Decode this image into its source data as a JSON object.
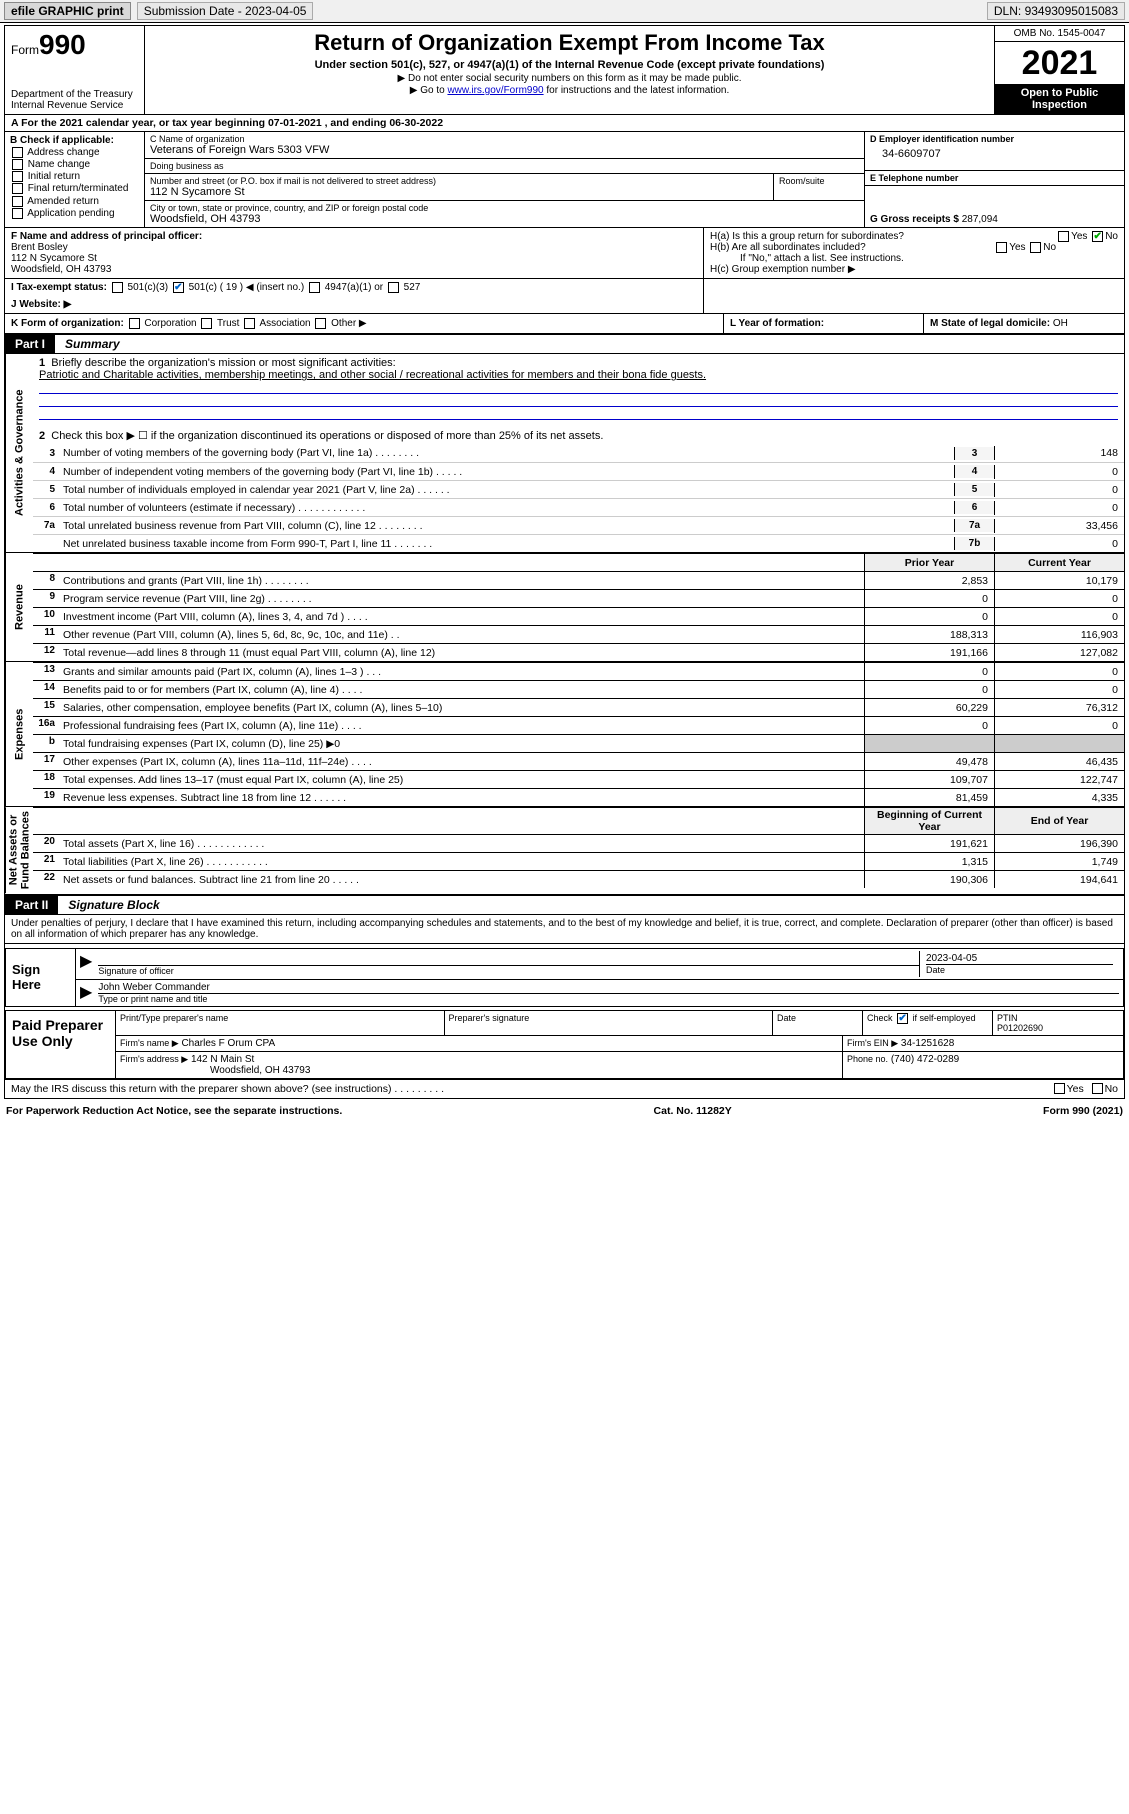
{
  "topbar": {
    "efile": "efile GRAPHIC print",
    "submission_label": "Submission Date - 2023-04-05",
    "dln_label": "DLN: 93493095015083"
  },
  "header": {
    "form_small": "Form",
    "form_no": "990",
    "dept": "Department of the Treasury",
    "irs": "Internal Revenue Service",
    "title": "Return of Organization Exempt From Income Tax",
    "sub1": "Under section 501(c), 527, or 4947(a)(1) of the Internal Revenue Code (except private foundations)",
    "sub2": "▶ Do not enter social security numbers on this form as it may be made public.",
    "sub3_pre": "▶ Go to ",
    "sub3_link": "www.irs.gov/Form990",
    "sub3_post": " for instructions and the latest information.",
    "omb": "OMB No. 1545-0047",
    "year": "2021",
    "open1": "Open to Public",
    "open2": "Inspection"
  },
  "row_a": {
    "text": "A For the 2021 calendar year, or tax year beginning 07-01-2021    , and ending 06-30-2022"
  },
  "b": {
    "title": "B Check if applicable:",
    "opts": [
      "Address change",
      "Name change",
      "Initial return",
      "Final return/terminated",
      "Amended return",
      "Application pending"
    ]
  },
  "c": {
    "name_lbl": "C Name of organization",
    "name": "Veterans of Foreign Wars 5303 VFW",
    "dba_lbl": "Doing business as",
    "dba": "",
    "addr_lbl": "Number and street (or P.O. box if mail is not delivered to street address)",
    "room_lbl": "Room/suite",
    "addr": "112 N Sycamore St",
    "city_lbl": "City or town, state or province, country, and ZIP or foreign postal code",
    "city": "Woodsfield, OH  43793"
  },
  "d": {
    "lbl": "D Employer identification number",
    "val": "34-6609707"
  },
  "e": {
    "lbl": "E Telephone number",
    "val": ""
  },
  "g": {
    "lbl": "G Gross receipts $",
    "val": "287,094"
  },
  "f": {
    "lbl": "F  Name and address of principal officer:",
    "name": "Brent Bosley",
    "addr1": "112 N Sycamore St",
    "addr2": "Woodsfield, OH  43793"
  },
  "h": {
    "a": "H(a)  Is this a group return for subordinates?",
    "b": "H(b)  Are all subordinates included?",
    "note": "If \"No,\" attach a list. See instructions.",
    "c": "H(c)  Group exemption number ▶",
    "yes": "Yes",
    "no": "No"
  },
  "i": {
    "lbl": "I   Tax-exempt status:",
    "c3": "501(c)(3)",
    "c": "501(c) ( 19 ) ◀ (insert no.)",
    "a1": "4947(a)(1) or",
    "s527": "527"
  },
  "j": {
    "lbl": "J   Website: ▶",
    "val": ""
  },
  "k": {
    "lbl": "K Form of organization:",
    "corp": "Corporation",
    "trust": "Trust",
    "assoc": "Association",
    "other": "Other ▶"
  },
  "l": {
    "lbl": "L Year of formation:",
    "val": ""
  },
  "m": {
    "lbl": "M State of legal domicile:",
    "val": "OH"
  },
  "part1": {
    "no": "Part I",
    "title": "Summary"
  },
  "vlabels": {
    "gov": "Activities & Governance",
    "rev": "Revenue",
    "exp": "Expenses",
    "net": "Net Assets or\nFund Balances"
  },
  "sec1": {
    "l1": "Briefly describe the organization's mission or most significant activities:",
    "l1v": "Patriotic and Charitable activities, membership meetings, and other social / recreational activities for members and their bona fide guests.",
    "l2": "Check this box ▶ ☐  if the organization discontinued its operations or disposed of more than 25% of its net assets.",
    "rows": [
      {
        "n": "3",
        "d": "Number of voting members of the governing body (Part VI, line 1a)   .     .     .     .     .     .     .     .",
        "box": "3",
        "v": "148"
      },
      {
        "n": "4",
        "d": "Number of independent voting members of the governing body (Part VI, line 1b)   .     .     .     .     .",
        "box": "4",
        "v": "0"
      },
      {
        "n": "5",
        "d": "Total number of individuals employed in calendar year 2021 (Part V, line 2a)   .     .     .     .     .     .",
        "box": "5",
        "v": "0"
      },
      {
        "n": "6",
        "d": "Total number of volunteers (estimate if necessary)   .     .     .     .     .     .     .     .     .     .     .     .",
        "box": "6",
        "v": "0"
      },
      {
        "n": "7a",
        "d": "Total unrelated business revenue from Part VIII, column (C), line 12   .     .     .     .     .     .     .     .",
        "box": "7a",
        "v": "33,456"
      },
      {
        "n": "",
        "d": "Net unrelated business taxable income from Form 990-T, Part I, line 11   .     .     .     .     .     .     .",
        "box": "7b",
        "v": "0"
      }
    ]
  },
  "colhdr": {
    "prior": "Prior Year",
    "current": "Current Year",
    "bcy": "Beginning of Current Year",
    "eoy": "End of Year"
  },
  "rev_rows": [
    {
      "n": "8",
      "d": "Contributions and grants (Part VIII, line 1h)   .     .     .     .     .     .     .     .",
      "p": "2,853",
      "c": "10,179"
    },
    {
      "n": "9",
      "d": "Program service revenue (Part VIII, line 2g)   .     .     .     .     .     .     .     .",
      "p": "0",
      "c": "0"
    },
    {
      "n": "10",
      "d": "Investment income (Part VIII, column (A), lines 3, 4, and 7d )    .     .     .     .",
      "p": "0",
      "c": "0"
    },
    {
      "n": "11",
      "d": "Other revenue (Part VIII, column (A), lines 5, 6d, 8c, 9c, 10c, and 11e)    .     .",
      "p": "188,313",
      "c": "116,903"
    },
    {
      "n": "12",
      "d": "Total revenue—add lines 8 through 11 (must equal Part VIII, column (A), line 12)",
      "p": "191,166",
      "c": "127,082"
    }
  ],
  "exp_rows": [
    {
      "n": "13",
      "d": "Grants and similar amounts paid (Part IX, column (A), lines 1–3 )   .     .     .",
      "p": "0",
      "c": "0"
    },
    {
      "n": "14",
      "d": "Benefits paid to or for members (Part IX, column (A), line 4)   .     .     .     .",
      "p": "0",
      "c": "0"
    },
    {
      "n": "15",
      "d": "Salaries, other compensation, employee benefits (Part IX, column (A), lines 5–10)",
      "p": "60,229",
      "c": "76,312"
    },
    {
      "n": "16a",
      "d": "Professional fundraising fees (Part IX, column (A), line 11e)   .     .     .     .",
      "p": "0",
      "c": "0"
    },
    {
      "n": "b",
      "d": "Total fundraising expenses (Part IX, column (D), line 25) ▶0",
      "p": "",
      "c": "",
      "shade": true
    },
    {
      "n": "17",
      "d": "Other expenses (Part IX, column (A), lines 11a–11d, 11f–24e)   .     .     .     .",
      "p": "49,478",
      "c": "46,435"
    },
    {
      "n": "18",
      "d": "Total expenses. Add lines 13–17 (must equal Part IX, column (A), line 25)",
      "p": "109,707",
      "c": "122,747"
    },
    {
      "n": "19",
      "d": "Revenue less expenses. Subtract line 18 from line 12   .     .     .     .     .     .",
      "p": "81,459",
      "c": "4,335"
    }
  ],
  "net_rows": [
    {
      "n": "20",
      "d": "Total assets (Part X, line 16)   .     .     .     .     .     .     .     .     .     .     .     .",
      "p": "191,621",
      "c": "196,390"
    },
    {
      "n": "21",
      "d": "Total liabilities (Part X, line 26)   .     .     .     .     .     .     .     .     .     .     .",
      "p": "1,315",
      "c": "1,749"
    },
    {
      "n": "22",
      "d": "Net assets or fund balances. Subtract line 21 from line 20   .     .     .     .     .",
      "p": "190,306",
      "c": "194,641"
    }
  ],
  "part2": {
    "no": "Part II",
    "title": "Signature Block"
  },
  "penalties": "Under penalties of perjury, I declare that I have examined this return, including accompanying schedules and statements, and to the best of my knowledge and belief, it is true, correct, and complete. Declaration of preparer (other than officer) is based on all information of which preparer has any knowledge.",
  "sign": {
    "here": "Sign Here",
    "sig_lbl": "Signature of officer",
    "date": "2023-04-05",
    "date_lbl": "Date",
    "name": "John Weber  Commander",
    "name_lbl": "Type or print name and title"
  },
  "prep": {
    "title": "Paid Preparer Use Only",
    "pt_name_lbl": "Print/Type preparer's name",
    "pt_sig_lbl": "Preparer's signature",
    "date_lbl": "Date",
    "check_lbl": "Check",
    "self_emp": "if self-employed",
    "ptin_lbl": "PTIN",
    "ptin": "P01202690",
    "firm_name_lbl": "Firm's name    ▶",
    "firm_name": "Charles F Orum CPA",
    "firm_ein_lbl": "Firm's EIN ▶",
    "firm_ein": "34-1251628",
    "firm_addr_lbl": "Firm's address ▶",
    "firm_addr1": "142 N Main St",
    "firm_addr2": "Woodsfield, OH  43793",
    "phone_lbl": "Phone no.",
    "phone": "(740) 472-0289"
  },
  "discuss": "May the IRS discuss this return with the preparer shown above? (see instructions)   .     .     .     .     .     .     .     .     .",
  "footer": {
    "pra": "For Paperwork Reduction Act Notice, see the separate instructions.",
    "cat": "Cat. No. 11282Y",
    "form": "Form 990 (2021)"
  }
}
